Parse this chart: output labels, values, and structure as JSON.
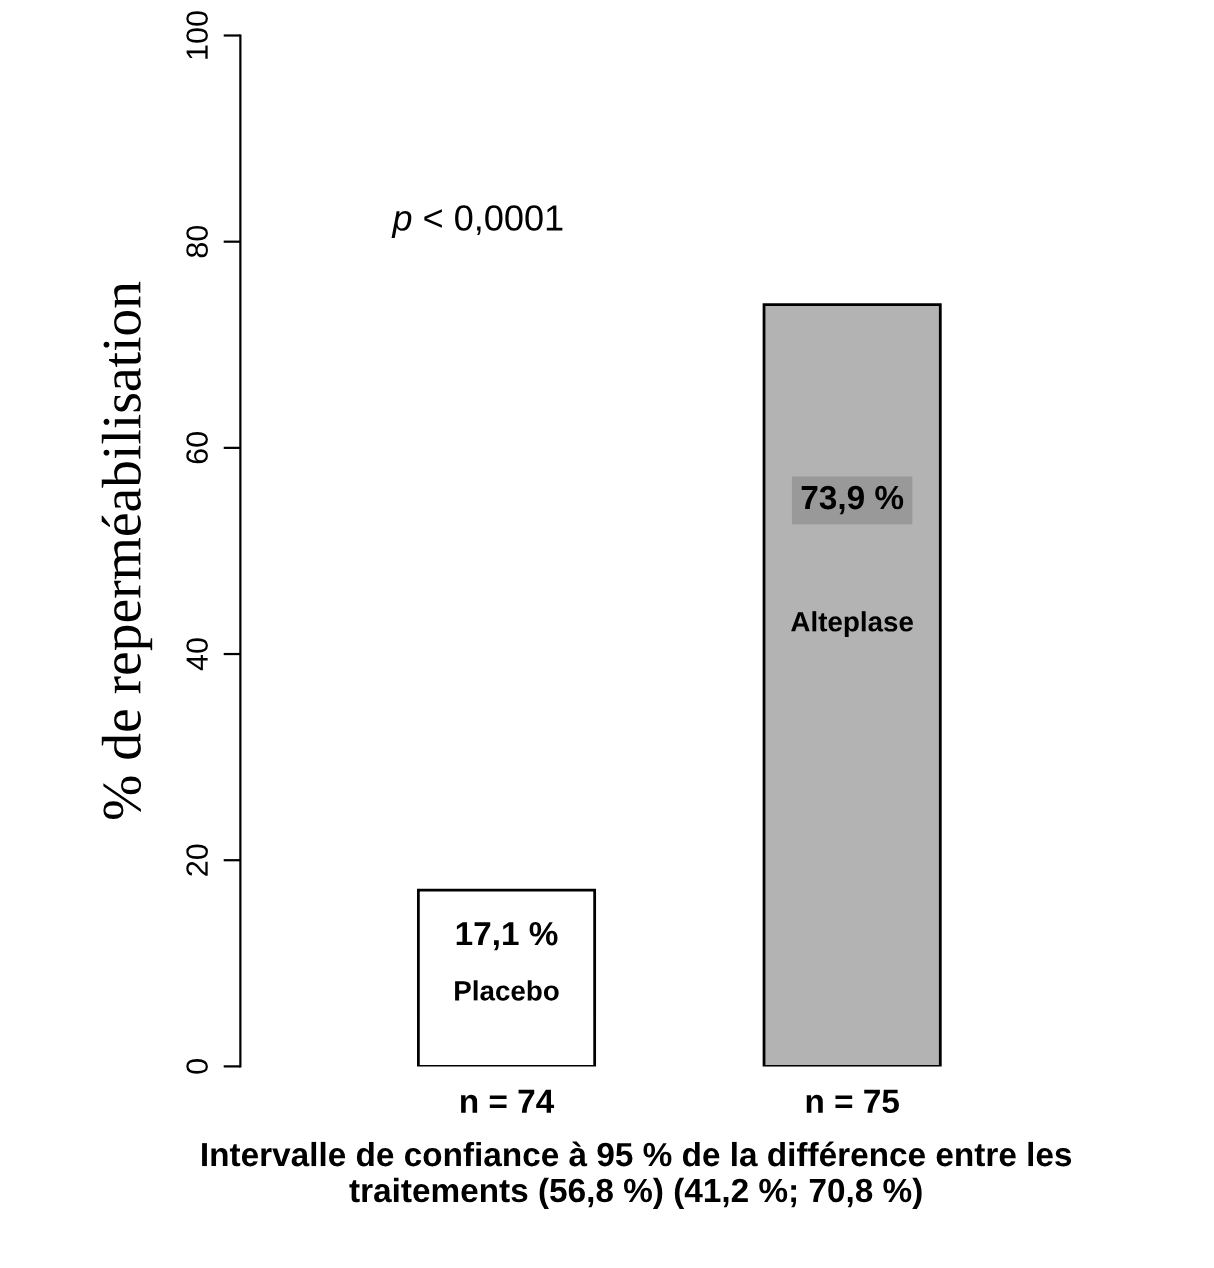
{
  "chart_data": {
    "type": "bar",
    "categories": [
      "n = 74",
      "n = 75"
    ],
    "values": [
      17.1,
      73.9
    ],
    "colors": [
      "#ffffff",
      "#b3b3b3"
    ],
    "value_labels": [
      "17,1 %",
      "73,9 %"
    ],
    "ylabel": "% de reperméabilisation",
    "xlabel": "Intervalle de confiance à 95 % de la différence entre les\ntraitements (56,8 %) (41,2 %; 70,8 %)",
    "ylim": [
      0,
      100
    ],
    "yticks": [
      0,
      20,
      40,
      60,
      80,
      100
    ],
    "grid": false,
    "legend": false,
    "annotations": [
      "Placebo",
      "Alteplase",
      "p < 0,0001"
    ]
  }
}
